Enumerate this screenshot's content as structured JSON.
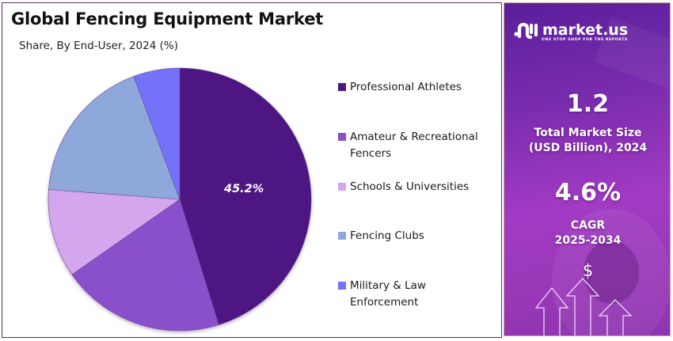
{
  "header": {
    "title": "Global Fencing Equipment Market",
    "subtitle": "Share, By End-User, 2024 (%)"
  },
  "chart_data": {
    "type": "pie",
    "title": "Global Fencing Equipment Market",
    "subtitle": "Share, By End-User, 2024 (%)",
    "categories": [
      "Professional Athletes",
      "Amateur & Recreational Fencers",
      "Schools & Universities",
      "Fencing Clubs",
      "Military & Law Enforcement"
    ],
    "values": [
      45.2,
      20.1,
      10.9,
      18.1,
      5.7
    ],
    "colors": [
      "#4e1782",
      "#8a4fcb",
      "#d3a6ee",
      "#8ea8db",
      "#7572fa"
    ],
    "data_labels": {
      "Professional Athletes": "45.2%"
    },
    "start_angle": "12 o'clock",
    "direction": "clockwise",
    "legend_position": "right"
  },
  "pie": {
    "label": "45.2%"
  },
  "legend": {
    "items": [
      {
        "line1": "Professional Athletes",
        "line2": "",
        "color": "#4e1782"
      },
      {
        "line1": "Amateur & Recreational",
        "line2": "Fencers",
        "color": "#8a4fcb"
      },
      {
        "line1": "Schools & Universities",
        "line2": "",
        "color": "#d3a6ee"
      },
      {
        "line1": "Fencing Clubs",
        "line2": "",
        "color": "#8ea8db"
      },
      {
        "line1": "Military & Law",
        "line2": "Enforcement",
        "color": "#7572fa"
      }
    ]
  },
  "sidebar": {
    "logo_name": "market.us",
    "logo_tagline": "ONE STOP SHOP FOR THE REPORTS",
    "market_size_value": "1.2",
    "market_size_label_1": "Total Market Size",
    "market_size_label_2": "(USD Billion), 2024",
    "cagr_value": "4.6%",
    "cagr_label_1": "CAGR",
    "cagr_label_2": "2025-2034",
    "dollar_symbol": "$"
  }
}
